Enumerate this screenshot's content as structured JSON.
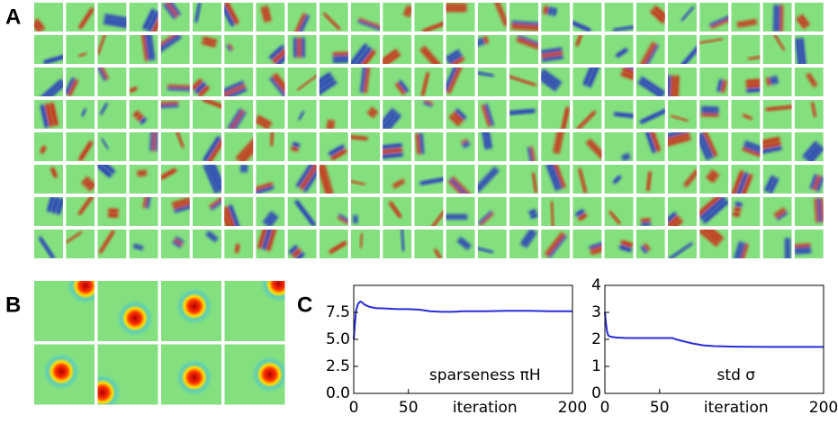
{
  "panel_labels": [
    "A",
    "B",
    "C"
  ],
  "chart_data": [
    {
      "type": "line",
      "annotation": "sparseness πH",
      "xlabel": "iteration",
      "color": "#2b2bd9",
      "x": [
        0,
        2,
        4,
        6,
        8,
        10,
        15,
        20,
        30,
        40,
        50,
        60,
        70,
        80,
        90,
        100,
        120,
        140,
        160,
        180,
        200
      ],
      "values": [
        5.0,
        7.6,
        8.3,
        8.5,
        8.4,
        8.2,
        8.0,
        7.9,
        7.85,
        7.8,
        7.8,
        7.75,
        7.6,
        7.55,
        7.55,
        7.6,
        7.6,
        7.65,
        7.65,
        7.6,
        7.6
      ],
      "xlim": [
        0,
        200
      ],
      "xticks": [
        0,
        50,
        200
      ],
      "ylim": [
        0,
        10
      ],
      "yticks": [
        {
          "value": 0,
          "label": "0.0"
        },
        2.5,
        {
          "value": 5,
          "label": "5.0"
        },
        7.5
      ]
    },
    {
      "type": "line",
      "annotation": "std σ",
      "xlabel": "iteration",
      "color": "#2b2bd9",
      "x": [
        0,
        1,
        2,
        3,
        5,
        10,
        20,
        40,
        60,
        62,
        65,
        70,
        80,
        90,
        100,
        120,
        150,
        200
      ],
      "values": [
        3.0,
        2.6,
        2.3,
        2.15,
        2.1,
        2.07,
        2.05,
        2.05,
        2.05,
        2.05,
        2.0,
        1.95,
        1.85,
        1.78,
        1.75,
        1.73,
        1.72,
        1.72
      ],
      "xlim": [
        0,
        200
      ],
      "xticks": [
        0,
        50,
        200
      ],
      "ylim": [
        0,
        4
      ],
      "yticks": [
        0,
        1,
        2,
        3,
        4
      ]
    }
  ]
}
